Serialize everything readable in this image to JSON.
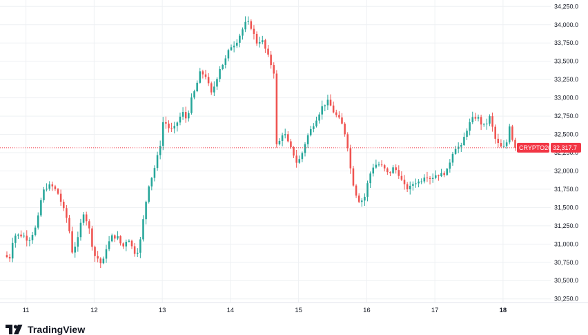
{
  "brand": {
    "name": "TradingView",
    "logo_icon": "tradingview-logo-icon"
  },
  "colors": {
    "up": "#26a69a",
    "down": "#ef5350",
    "tag": "#f23645",
    "grid": "#eef0f3",
    "text": "#131722"
  },
  "current": {
    "symbol": "CRYPTO20",
    "price_label": "32,317.7",
    "price": 32317.7
  },
  "chart_data": {
    "type": "candlestick",
    "y_axis_side": "right",
    "ylim": [
      30200,
      34300
    ],
    "y_ticks": [
      30250,
      30500,
      30750,
      31000,
      31250,
      31500,
      31750,
      32000,
      32250,
      32500,
      32750,
      33000,
      33250,
      33500,
      33750,
      34000,
      34250
    ],
    "y_tick_labels": [
      "30,250.0",
      "30,500.0",
      "30,750.0",
      "31,000.0",
      "31,250.0",
      "31,500.0",
      "31,750.0",
      "32,000.0",
      "32,250.0",
      "32,500.0",
      "32,750.0",
      "33,000.0",
      "33,250.0",
      "33,500.0",
      "33,750.0",
      "34,000.0",
      "34,250.0"
    ],
    "x_range": [
      10.7,
      18.7
    ],
    "x_ticks": [
      {
        "label": "11",
        "x": 11,
        "bold": false
      },
      {
        "label": "12",
        "x": 12,
        "bold": false
      },
      {
        "label": "13",
        "x": 13,
        "bold": false
      },
      {
        "label": "14",
        "x": 14,
        "bold": false
      },
      {
        "label": "15",
        "x": 15,
        "bold": false
      },
      {
        "label": "16",
        "x": 16,
        "bold": false
      },
      {
        "label": "17",
        "x": 17,
        "bold": false
      },
      {
        "label": "18",
        "x": 18,
        "bold": true
      }
    ],
    "candle_interval_days": 0.0416667,
    "start_x": 10.72,
    "anchors": [
      [
        10.72,
        30850
      ],
      [
        10.8,
        30800
      ],
      [
        10.86,
        31120
      ],
      [
        11.0,
        31120
      ],
      [
        11.08,
        31050
      ],
      [
        11.14,
        31150
      ],
      [
        11.2,
        31250
      ],
      [
        11.28,
        31700
      ],
      [
        11.36,
        31800
      ],
      [
        11.44,
        31780
      ],
      [
        11.52,
        31680
      ],
      [
        11.6,
        31450
      ],
      [
        11.66,
        31300
      ],
      [
        11.72,
        30900
      ],
      [
        11.8,
        31050
      ],
      [
        11.88,
        31450
      ],
      [
        11.96,
        31250
      ],
      [
        12.04,
        30850
      ],
      [
        12.1,
        30800
      ],
      [
        12.16,
        30700
      ],
      [
        12.22,
        30950
      ],
      [
        12.3,
        31100
      ],
      [
        12.38,
        31100
      ],
      [
        12.46,
        30950
      ],
      [
        12.54,
        31100
      ],
      [
        12.6,
        30950
      ],
      [
        12.66,
        30850
      ],
      [
        12.72,
        31050
      ],
      [
        12.78,
        31450
      ],
      [
        12.84,
        31800
      ],
      [
        12.9,
        31950
      ],
      [
        12.96,
        32150
      ],
      [
        13.02,
        32400
      ],
      [
        13.06,
        32720
      ],
      [
        13.12,
        32600
      ],
      [
        13.2,
        32550
      ],
      [
        13.28,
        32700
      ],
      [
        13.34,
        32800
      ],
      [
        13.4,
        32700
      ],
      [
        13.46,
        32950
      ],
      [
        13.52,
        33100
      ],
      [
        13.6,
        33350
      ],
      [
        13.68,
        33300
      ],
      [
        13.76,
        33050
      ],
      [
        13.82,
        33200
      ],
      [
        13.88,
        33400
      ],
      [
        13.96,
        33500
      ],
      [
        14.04,
        33700
      ],
      [
        14.12,
        33750
      ],
      [
        14.2,
        33900
      ],
      [
        14.28,
        34050
      ],
      [
        14.36,
        33950
      ],
      [
        14.42,
        33750
      ],
      [
        14.5,
        33800
      ],
      [
        14.56,
        33650
      ],
      [
        14.62,
        33500
      ],
      [
        14.68,
        33350
      ],
      [
        14.72,
        32350
      ],
      [
        14.76,
        32400
      ],
      [
        14.82,
        32550
      ],
      [
        14.9,
        32350
      ],
      [
        14.96,
        32250
      ],
      [
        15.02,
        32100
      ],
      [
        15.08,
        32200
      ],
      [
        15.16,
        32450
      ],
      [
        15.24,
        32600
      ],
      [
        15.32,
        32750
      ],
      [
        15.4,
        32900
      ],
      [
        15.48,
        32950
      ],
      [
        15.56,
        32800
      ],
      [
        15.64,
        32700
      ],
      [
        15.7,
        32600
      ],
      [
        15.76,
        32350
      ],
      [
        15.8,
        32050
      ],
      [
        15.86,
        31750
      ],
      [
        15.92,
        31600
      ],
      [
        16.0,
        31600
      ],
      [
        16.06,
        31850
      ],
      [
        16.12,
        32050
      ],
      [
        16.2,
        32100
      ],
      [
        16.28,
        32050
      ],
      [
        16.36,
        31950
      ],
      [
        16.44,
        32050
      ],
      [
        16.52,
        31950
      ],
      [
        16.58,
        31800
      ],
      [
        16.66,
        31750
      ],
      [
        16.74,
        31850
      ],
      [
        16.82,
        31850
      ],
      [
        16.9,
        31950
      ],
      [
        16.98,
        31900
      ],
      [
        17.06,
        31950
      ],
      [
        17.14,
        31950
      ],
      [
        17.22,
        32000
      ],
      [
        17.3,
        32250
      ],
      [
        17.36,
        32350
      ],
      [
        17.42,
        32300
      ],
      [
        17.5,
        32550
      ],
      [
        17.58,
        32700
      ],
      [
        17.66,
        32750
      ],
      [
        17.72,
        32650
      ],
      [
        17.78,
        32600
      ],
      [
        17.84,
        32750
      ],
      [
        17.88,
        32620
      ],
      [
        17.92,
        32450
      ],
      [
        17.98,
        32350
      ],
      [
        18.04,
        32300
      ],
      [
        18.1,
        32400
      ],
      [
        18.14,
        32650
      ],
      [
        18.2,
        32320
      ]
    ]
  }
}
